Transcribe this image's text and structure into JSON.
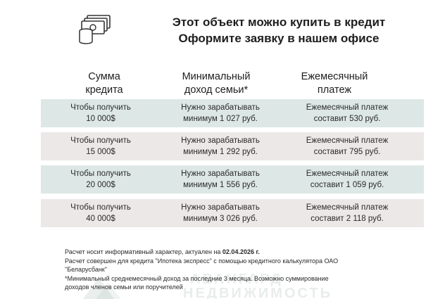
{
  "header": {
    "icon": "money-stack-icon",
    "title_line1": "Этот объект можно купить в кредит",
    "title_line2": "Оформите заявку в нашем офисе"
  },
  "table": {
    "columns": [
      "Сумма\nкредита",
      "Минимальный\nдоход семьи*",
      "Ежемесячный\nплатеж"
    ],
    "rows": [
      {
        "amount_line1": "Чтобы получить",
        "amount_line2": "10 000$",
        "income_line1": "Нужно зарабатывать",
        "income_line2": "минимум 1 027 руб.",
        "payment_line1": "Ежемесячный платеж",
        "payment_line2": "составит 530 руб."
      },
      {
        "amount_line1": "Чтобы получить",
        "amount_line2": "15 000$",
        "income_line1": "Нужно зарабатывать",
        "income_line2": "минимум 1 292 руб.",
        "payment_line1": "Ежемесячный платеж",
        "payment_line2": "составит 795 руб."
      },
      {
        "amount_line1": "Чтобы получить",
        "amount_line2": "20 000$",
        "income_line1": "Нужно зарабатывать",
        "income_line2": "минимум 1 556 руб.",
        "payment_line1": "Ежемесячный платеж",
        "payment_line2": "составит 1 059 руб."
      },
      {
        "amount_line1": "Чтобы получить",
        "amount_line2": "40 000$",
        "income_line1": "Нужно зарабатывать",
        "income_line2": "минимум 3 026 руб.",
        "payment_line1": "Ежемесячный платеж",
        "payment_line2": "составит 2 118 руб."
      }
    ]
  },
  "footer": {
    "line1_prefix": "Расчет носит информативный характер, актуален на ",
    "line1_date": "02.04.2026 г.",
    "line2": "Расчет совершен для кредита \"Ипотека экспресс\" с помощью кредитного калькулятора ОАО",
    "line3": "\"Беларусбанк\"",
    "line4": "*Минимальный среднемесячный доход за последние 3 месяца. Возможно суммирование",
    "line5": "доходов членов семьи или поручителей"
  },
  "watermark": {
    "line1": "АВАНГАРД",
    "line2": "НЕДВИЖИМОСТЬ"
  },
  "colors": {
    "row_teal": "#dde8e6",
    "row_pink": "#ece8e7",
    "text": "#222222"
  }
}
